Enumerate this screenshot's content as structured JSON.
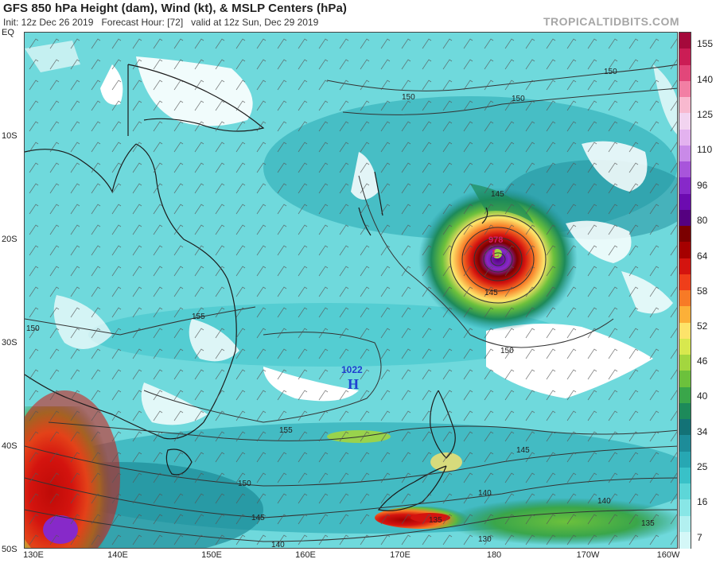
{
  "header": {
    "title": "GFS 850 hPa Height (dam), Wind (kt), & MSLP Centers (hPa)",
    "init": "Init: 12z Dec 26 2019",
    "forecast_hour": "Forecast Hour: [72]",
    "valid": "valid at 12z Sun, Dec 29 2019",
    "brand": "TROPICALTIDBITS.COM"
  },
  "map": {
    "lat_labels": [
      "EQ",
      "10S",
      "20S",
      "30S",
      "40S",
      "50S"
    ],
    "lon_labels": [
      "130E",
      "140E",
      "150E",
      "160E",
      "170E",
      "180",
      "170W",
      "160W"
    ],
    "contour_labels": [
      "150",
      "150",
      "150",
      "145",
      "145",
      "150",
      "155",
      "150",
      "155",
      "150",
      "145",
      "135",
      "140",
      "145",
      "140",
      "130",
      "135",
      "140"
    ],
    "high_center": {
      "pressure": "1022",
      "symbol": "H"
    },
    "low_center": {
      "pressure": "978",
      "symbol": "L"
    }
  },
  "colorbar": {
    "labels": [
      "155",
      "140",
      "125",
      "110",
      "96",
      "80",
      "64",
      "58",
      "52",
      "46",
      "40",
      "34",
      "25",
      "16",
      "7"
    ],
    "colors": [
      "#a5093b",
      "#cb1d55",
      "#e2477a",
      "#f27fa4",
      "#f8b9cf",
      "#f2d4f0",
      "#e3b2ef",
      "#c98ae8",
      "#a855db",
      "#8729c9",
      "#6c0bb0",
      "#550080",
      "#7b0000",
      "#a50000",
      "#d4140f",
      "#ef3e1a",
      "#f77a26",
      "#fcb038",
      "#fde36a",
      "#d8e84e",
      "#a3d63f",
      "#6cc13c",
      "#3aa64a",
      "#1d8a5a",
      "#137276",
      "#1d8c99",
      "#27a7b3",
      "#39c1c8",
      "#5dd6d8",
      "#88e6e6",
      "#b2f0f0",
      "#d4f7f7"
    ]
  }
}
